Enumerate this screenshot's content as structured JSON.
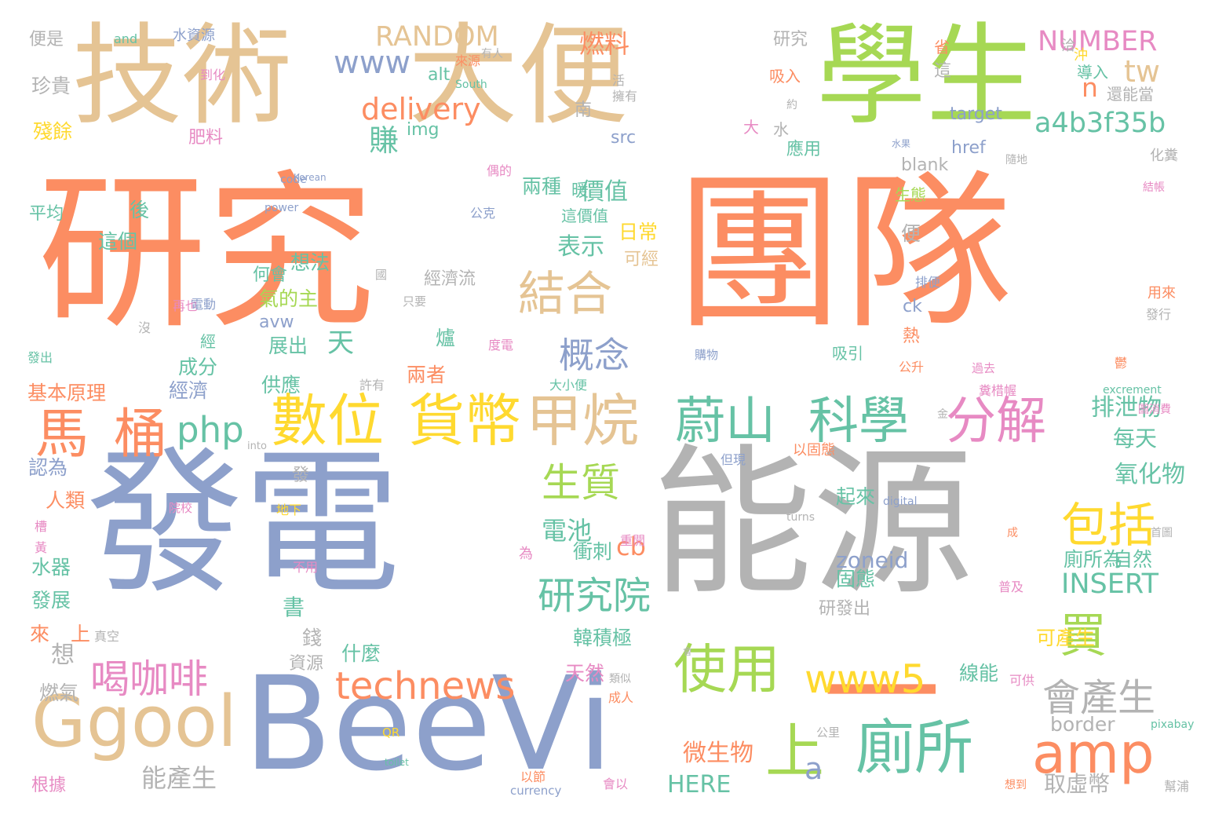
{
  "palette": {
    "orange": "#fc8d62",
    "blue": "#8da0cb",
    "gray": "#b3b3b3",
    "tan": "#e5c494",
    "green": "#a6d854",
    "teal": "#66c2a5",
    "yellow": "#ffd92f",
    "pink": "#e78ac3"
  },
  "words": [
    {
      "text": "研究",
      "color": "orange",
      "orient": "h"
    },
    {
      "text": "團隊",
      "color": "orange",
      "orient": "h"
    },
    {
      "text": "發電",
      "color": "blue",
      "orient": "h"
    },
    {
      "text": "能源",
      "color": "gray",
      "orient": "h"
    },
    {
      "text": "技術",
      "color": "tan",
      "orient": "h"
    },
    {
      "text": "大便",
      "color": "tan",
      "orient": "h"
    },
    {
      "text": "學生",
      "color": "green",
      "orient": "h"
    },
    {
      "text": "BeeVi",
      "color": "blue",
      "orient": "h"
    },
    {
      "text": "一",
      "color": "orange",
      "orient": "h"
    },
    {
      "text": "Ggool",
      "color": "tan",
      "orient": "h"
    },
    {
      "text": "數位",
      "color": "yellow",
      "orient": "h"
    },
    {
      "text": "貨幣",
      "color": "yellow",
      "orient": "h"
    },
    {
      "text": "甲烷",
      "color": "tan",
      "orient": "h"
    },
    {
      "text": "蔚山",
      "color": "teal",
      "orient": "h"
    },
    {
      "text": "科學",
      "color": "teal",
      "orient": "h"
    },
    {
      "text": "分解",
      "color": "pink",
      "orient": "h"
    },
    {
      "text": "馬",
      "color": "orange",
      "orient": "h"
    },
    {
      "text": "桶",
      "color": "orange",
      "orient": "h"
    },
    {
      "text": "廁所",
      "color": "teal",
      "orient": "h"
    },
    {
      "text": "amp",
      "color": "orange",
      "orient": "h"
    },
    {
      "text": "使用",
      "color": "green",
      "orient": "h"
    },
    {
      "text": "上",
      "color": "green",
      "orient": "h"
    },
    {
      "text": "結合",
      "color": "tan",
      "orient": "h"
    },
    {
      "text": "買",
      "color": "green",
      "orient": "h"
    },
    {
      "text": "包括",
      "color": "yellow",
      "orient": "h"
    },
    {
      "text": "會產生",
      "color": "gray",
      "orient": "h"
    },
    {
      "text": "technews",
      "color": "orange",
      "orient": "h"
    },
    {
      "text": "www5",
      "color": "yellow",
      "orient": "h"
    },
    {
      "text": "研究院",
      "color": "teal",
      "orient": "h"
    },
    {
      "text": "喝咖啡",
      "color": "pink",
      "orient": "h"
    },
    {
      "text": "生質",
      "color": "green",
      "orient": "h"
    },
    {
      "text": "概念",
      "color": "blue",
      "orient": "h"
    },
    {
      "text": "php",
      "color": "teal",
      "orient": "h"
    },
    {
      "text": "delivery",
      "color": "orange",
      "orient": "h"
    },
    {
      "text": "a4b3f35b",
      "color": "teal",
      "orient": "h"
    },
    {
      "text": "www",
      "color": "blue",
      "orient": "h"
    },
    {
      "text": "RANDOM",
      "color": "tan",
      "orient": "h"
    },
    {
      "text": "NUMBER",
      "color": "pink",
      "orient": "h"
    },
    {
      "text": "tw",
      "color": "tan",
      "orient": "h"
    },
    {
      "text": "n",
      "color": "orange",
      "orient": "h"
    },
    {
      "text": "燃料",
      "color": "orange",
      "orient": "h"
    },
    {
      "text": "賺",
      "color": "teal",
      "orient": "h"
    },
    {
      "text": "價值",
      "color": "teal",
      "orient": "h"
    },
    {
      "text": "表示",
      "color": "teal",
      "orient": "h"
    },
    {
      "text": "天",
      "color": "teal",
      "orient": "h"
    },
    {
      "text": "電池",
      "color": "teal",
      "orient": "h"
    },
    {
      "text": "氧化物",
      "color": "teal",
      "orient": "h"
    },
    {
      "text": "排泄物",
      "color": "teal",
      "orient": "h"
    },
    {
      "text": "每天",
      "color": "teal",
      "orient": "h"
    },
    {
      "text": "INSERT",
      "color": "teal",
      "orient": "h"
    },
    {
      "text": "微生物",
      "color": "orange",
      "orient": "h"
    },
    {
      "text": "能產生",
      "color": "gray",
      "orient": "h"
    },
    {
      "text": "HERE",
      "color": "teal",
      "orient": "h"
    },
    {
      "text": "取虛幣",
      "color": "gray",
      "orient": "h"
    },
    {
      "text": "a",
      "color": "blue",
      "orient": "h"
    },
    {
      "text": "cb",
      "color": "orange",
      "orient": "h"
    },
    {
      "text": "zoneid",
      "color": "blue",
      "orient": "h"
    },
    {
      "text": "border",
      "color": "gray",
      "orient": "h"
    },
    {
      "text": "衝刺",
      "color": "teal",
      "orient": "h"
    },
    {
      "text": "自然",
      "color": "teal",
      "orient": "h"
    },
    {
      "text": "廁所為",
      "color": "teal",
      "orient": "h"
    },
    {
      "text": "固態",
      "color": "teal",
      "orient": "h"
    },
    {
      "text": "起來",
      "color": "teal",
      "orient": "h"
    },
    {
      "text": "書",
      "color": "teal",
      "orient": "h"
    },
    {
      "text": "想",
      "color": "gray",
      "orient": "h"
    },
    {
      "text": "錢",
      "color": "gray",
      "orient": "h"
    },
    {
      "text": "什麼",
      "color": "teal",
      "orient": "h"
    },
    {
      "text": "資源",
      "color": "gray",
      "orient": "h"
    },
    {
      "text": "燃氣",
      "color": "gray",
      "orient": "h"
    },
    {
      "text": "韓積極",
      "color": "teal",
      "orient": "h"
    },
    {
      "text": "天然",
      "color": "pink",
      "orient": "h"
    },
    {
      "text": "線能",
      "color": "teal",
      "orient": "h"
    },
    {
      "text": "可產生",
      "color": "yellow",
      "orient": "h"
    },
    {
      "text": "研發出",
      "color": "gray",
      "orient": "h"
    },
    {
      "text": "水器",
      "color": "teal",
      "orient": "h"
    },
    {
      "text": "發展",
      "color": "teal",
      "orient": "h"
    },
    {
      "text": "來",
      "color": "orange",
      "orient": "h"
    },
    {
      "text": "上",
      "color": "orange",
      "orient": "h"
    },
    {
      "text": "人類",
      "color": "orange",
      "orient": "h"
    },
    {
      "text": "認為",
      "color": "blue",
      "orient": "h"
    },
    {
      "text": "基本原理",
      "color": "orange",
      "orient": "h"
    },
    {
      "text": "經濟",
      "color": "blue",
      "orient": "h"
    },
    {
      "text": "成分",
      "color": "teal",
      "orient": "h"
    },
    {
      "text": "供應",
      "color": "teal",
      "orient": "h"
    },
    {
      "text": "展出",
      "color": "teal",
      "orient": "h"
    },
    {
      "text": "兩者",
      "color": "orange",
      "orient": "h"
    },
    {
      "text": "avw",
      "color": "blue",
      "orient": "h"
    },
    {
      "text": "氣的主",
      "color": "green",
      "orient": "h"
    },
    {
      "text": "想法",
      "color": "teal",
      "orient": "h"
    },
    {
      "text": "何會",
      "color": "teal",
      "orient": "h"
    },
    {
      "text": "經濟流",
      "color": "gray",
      "orient": "h"
    },
    {
      "text": "日常",
      "color": "yellow",
      "orient": "h"
    },
    {
      "text": "可經",
      "color": "tan",
      "orient": "h"
    },
    {
      "text": "便",
      "color": "gray",
      "orient": "h"
    },
    {
      "text": "暖",
      "color": "teal",
      "orient": "h"
    },
    {
      "text": "兩種",
      "color": "teal",
      "orient": "h"
    },
    {
      "text": "這價值",
      "color": "teal",
      "orient": "h"
    },
    {
      "text": "後",
      "color": "teal",
      "orient": "h"
    },
    {
      "text": "這個",
      "color": "teal",
      "orient": "h"
    },
    {
      "text": "平均",
      "color": "teal",
      "orient": "h"
    },
    {
      "text": "殘餘",
      "color": "yellow",
      "orient": "h"
    },
    {
      "text": "肥料",
      "color": "pink",
      "orient": "h"
    },
    {
      "text": "珍貴",
      "color": "gray",
      "orient": "h"
    },
    {
      "text": "便是",
      "color": "gray",
      "orient": "h"
    },
    {
      "text": "and",
      "color": "teal",
      "orient": "h"
    },
    {
      "text": "水資源",
      "color": "blue",
      "orient": "h"
    },
    {
      "text": "img",
      "color": "teal",
      "orient": "h"
    },
    {
      "text": "alt",
      "color": "teal",
      "orient": "h"
    },
    {
      "text": "src",
      "color": "blue",
      "orient": "h"
    },
    {
      "text": "研究",
      "color": "gray",
      "orient": "h"
    },
    {
      "text": "南",
      "color": "gray",
      "orient": "h"
    },
    {
      "text": "吸入",
      "color": "orange",
      "orient": "h"
    },
    {
      "text": "水",
      "color": "gray",
      "orient": "h"
    },
    {
      "text": "大",
      "color": "pink",
      "orient": "h"
    },
    {
      "text": "應用",
      "color": "teal",
      "orient": "h"
    },
    {
      "text": "blank",
      "color": "gray",
      "orient": "h"
    },
    {
      "text": "生態",
      "color": "green",
      "orient": "h"
    },
    {
      "text": "target",
      "color": "blue",
      "orient": "h"
    },
    {
      "text": "href",
      "color": "blue",
      "orient": "h"
    },
    {
      "text": "化糞",
      "color": "gray",
      "orient": "h"
    },
    {
      "text": "導入",
      "color": "teal",
      "orient": "h"
    },
    {
      "text": "還能當",
      "color": "gray",
      "orient": "h"
    },
    {
      "text": "用來",
      "color": "orange",
      "orient": "h"
    },
    {
      "text": "熱",
      "color": "orange",
      "orient": "h"
    },
    {
      "text": "ck",
      "color": "blue",
      "orient": "h"
    },
    {
      "text": "吸引",
      "color": "teal",
      "orient": "h"
    },
    {
      "text": "公升",
      "color": "orange",
      "orient": "h"
    },
    {
      "text": "度電",
      "color": "pink",
      "orient": "h"
    },
    {
      "text": "購物",
      "color": "blue",
      "orient": "h"
    },
    {
      "text": "大小便",
      "color": "teal",
      "orient": "h"
    },
    {
      "text": "許有",
      "color": "gray",
      "orient": "h"
    },
    {
      "text": "excrement",
      "color": "teal",
      "orient": "h"
    },
    {
      "text": "圖消費",
      "color": "pink",
      "orient": "h"
    },
    {
      "text": "糞棤幄",
      "color": "pink",
      "orient": "h"
    },
    {
      "text": "過去",
      "color": "pink",
      "orient": "h"
    },
    {
      "text": "發行",
      "color": "gray",
      "orient": "h"
    },
    {
      "text": "以固態",
      "color": "orange",
      "orient": "h"
    },
    {
      "text": "但現",
      "color": "blue",
      "orient": "h"
    },
    {
      "text": "into",
      "color": "gray",
      "orient": "h"
    },
    {
      "text": "digital",
      "color": "blue",
      "orient": "h"
    },
    {
      "text": "turns",
      "color": "gray",
      "orient": "h"
    },
    {
      "text": "院校",
      "color": "pink",
      "orient": "h"
    },
    {
      "text": "地下",
      "color": "yellow",
      "orient": "h"
    },
    {
      "text": "不用",
      "color": "pink",
      "orient": "h"
    },
    {
      "text": "發",
      "color": "gray",
      "orient": "h"
    },
    {
      "text": "再也",
      "color": "pink",
      "orient": "h"
    },
    {
      "text": "電動",
      "color": "blue",
      "orient": "h"
    },
    {
      "text": "發出",
      "color": "teal",
      "orient": "h"
    },
    {
      "text": "只要",
      "color": "gray",
      "orient": "h"
    },
    {
      "text": "公克",
      "color": "blue",
      "orient": "h"
    },
    {
      "text": "偶的",
      "color": "pink",
      "orient": "h"
    },
    {
      "text": "code",
      "color": "blue",
      "orient": "h"
    },
    {
      "text": "power",
      "color": "blue",
      "orient": "h"
    },
    {
      "text": "Korean",
      "color": "blue",
      "orient": "h"
    },
    {
      "text": "到化",
      "color": "pink",
      "orient": "h"
    },
    {
      "text": "有人",
      "color": "gray",
      "orient": "h"
    },
    {
      "text": "South",
      "color": "teal",
      "orient": "h"
    },
    {
      "text": "來源",
      "color": "orange",
      "orient": "h"
    },
    {
      "text": "約",
      "color": "gray",
      "orient": "h"
    },
    {
      "text": "水果",
      "color": "blue",
      "orient": "h"
    },
    {
      "text": "隨地",
      "color": "gray",
      "orient": "h"
    },
    {
      "text": "結帳",
      "color": "pink",
      "orient": "h"
    },
    {
      "text": "省",
      "color": "orange",
      "orient": "h"
    },
    {
      "text": "成人",
      "color": "orange",
      "orient": "h"
    },
    {
      "text": "類似",
      "color": "gray",
      "orient": "h"
    },
    {
      "text": "可供",
      "color": "pink",
      "orient": "h"
    },
    {
      "text": "普及",
      "color": "pink",
      "orient": "h"
    },
    {
      "text": "首圖",
      "color": "gray",
      "orient": "h"
    },
    {
      "text": "成",
      "color": "orange",
      "orient": "h"
    },
    {
      "text": "pixabay",
      "color": "teal",
      "orient": "h"
    },
    {
      "text": "幫浦",
      "color": "gray",
      "orient": "h"
    },
    {
      "text": "公里",
      "color": "gray",
      "orient": "h"
    },
    {
      "text": "想到",
      "color": "orange",
      "orient": "h"
    },
    {
      "text": "以節",
      "color": "orange",
      "orient": "h"
    },
    {
      "text": "currency",
      "color": "blue",
      "orient": "h"
    },
    {
      "text": "toilet",
      "color": "teal",
      "orient": "h"
    },
    {
      "text": "QR",
      "color": "yellow",
      "orient": "h"
    },
    {
      "text": "會以",
      "color": "pink",
      "orient": "h"
    },
    {
      "text": "根據",
      "color": "pink",
      "orient": "h"
    },
    {
      "text": "真空",
      "color": "gray",
      "orient": "h"
    },
    {
      "text": "重開",
      "color": "pink",
      "orient": "h"
    },
    {
      "text": "會",
      "color": "gray",
      "orient": "h"
    },
    {
      "text": "沒",
      "color": "gray",
      "orient": "h"
    },
    {
      "text": "為",
      "color": "pink",
      "orient": "h"
    },
    {
      "text": "爐",
      "color": "teal",
      "orient": "h"
    },
    {
      "text": "經",
      "color": "teal",
      "orient": "h"
    },
    {
      "text": "排便",
      "color": "blue",
      "orient": "h"
    },
    {
      "text": "金",
      "color": "gray",
      "orient": "h"
    },
    {
      "text": "鬱",
      "color": "orange",
      "orient": "h"
    },
    {
      "text": "國",
      "color": "gray",
      "orient": "h"
    },
    {
      "text": "槽",
      "color": "pink",
      "orient": "h"
    },
    {
      "text": "黃",
      "color": "pink",
      "orient": "h"
    },
    {
      "text": "洽",
      "color": "gray",
      "orient": "h"
    },
    {
      "text": "沖",
      "color": "yellow",
      "orient": "h"
    },
    {
      "text": "這",
      "color": "gray",
      "orient": "h"
    },
    {
      "text": "活",
      "color": "gray",
      "orient": "h"
    },
    {
      "text": "擁有",
      "color": "gray",
      "orient": "h"
    }
  ]
}
